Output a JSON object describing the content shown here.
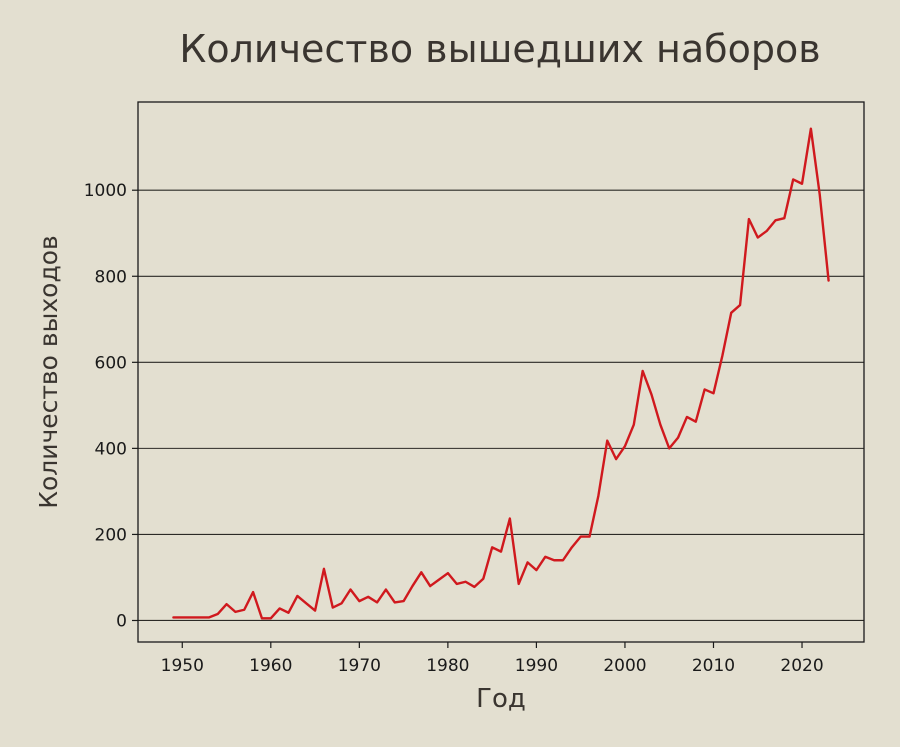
{
  "colors": {
    "background": "#e3dfd0",
    "line": "#d0191e",
    "grid": "#2b2a26",
    "text": "#3a3530"
  },
  "chart_data": {
    "type": "line",
    "title": "Количество вышедших наборов",
    "xlabel": "Год",
    "ylabel": "Количество выходов",
    "xlim": [
      1945,
      2027
    ],
    "ylim": [
      -50,
      1205
    ],
    "xticks": [
      1950,
      1960,
      1970,
      1980,
      1990,
      2000,
      2010,
      2020
    ],
    "yticks": [
      0,
      200,
      400,
      600,
      800,
      1000
    ],
    "grid": "horizontal",
    "series": [
      {
        "x": [
          1949,
          1950,
          1951,
          1952,
          1953,
          1954,
          1955,
          1956,
          1957,
          1958,
          1959,
          1960,
          1961,
          1962,
          1963,
          1964,
          1965,
          1966,
          1967,
          1968,
          1969,
          1970,
          1971,
          1972,
          1973,
          1974,
          1975,
          1976,
          1977,
          1978,
          1979,
          1980,
          1981,
          1982,
          1983,
          1984,
          1985,
          1986,
          1987,
          1988,
          1989,
          1990,
          1991,
          1992,
          1993,
          1994,
          1995,
          1996,
          1997,
          1998,
          1999,
          2000,
          2001,
          2002,
          2003,
          2004,
          2005,
          2006,
          2007,
          2008,
          2009,
          2010,
          2011,
          2012,
          2013,
          2014,
          2015,
          2016,
          2017,
          2018,
          2019,
          2020,
          2021,
          2022,
          2023
        ],
        "values": [
          7,
          7,
          7,
          7,
          7,
          15,
          38,
          20,
          25,
          66,
          5,
          5,
          28,
          18,
          57,
          40,
          23,
          120,
          30,
          40,
          72,
          45,
          55,
          42,
          72,
          42,
          45,
          80,
          112,
          80,
          95,
          110,
          85,
          90,
          78,
          97,
          170,
          160,
          237,
          85,
          135,
          117,
          148,
          140,
          140,
          170,
          195,
          195,
          290,
          418,
          375,
          405,
          455,
          580,
          525,
          455,
          400,
          425,
          473,
          462,
          537,
          528,
          615,
          715,
          733,
          933,
          890,
          905,
          930,
          935,
          1025,
          1015,
          1143,
          990,
          790
        ]
      }
    ]
  }
}
